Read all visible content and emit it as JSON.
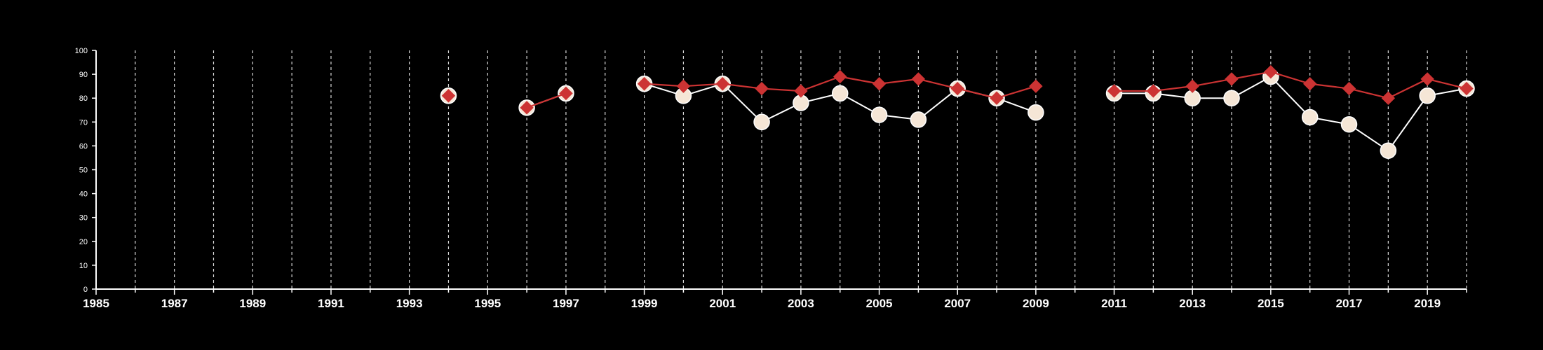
{
  "colors": {
    "background": "#000000",
    "axis": "#ffffff",
    "grid": "#d9d9d9",
    "series_a_marker": "#f5e6d6",
    "series_a_line": "#ffffff",
    "series_b": "#cc3333"
  },
  "chart_data": {
    "type": "line",
    "title": "",
    "xlabel": "",
    "ylabel": "",
    "xlim": [
      1985,
      2020
    ],
    "ylim": [
      0,
      100
    ],
    "x_ticks": [
      1985,
      1987,
      1989,
      1991,
      1993,
      1995,
      1997,
      1999,
      2001,
      2003,
      2005,
      2007,
      2009,
      2011,
      2013,
      2015,
      2017,
      2019
    ],
    "x_minor_ticks_every": 1,
    "y_ticks": [
      0,
      10,
      20,
      30,
      40,
      50,
      60,
      70,
      80,
      90,
      100
    ],
    "grid": "vertical dashed at every year",
    "legend": "none",
    "x": [
      1985,
      1986,
      1987,
      1988,
      1989,
      1990,
      1991,
      1992,
      1993,
      1994,
      1995,
      1996,
      1997,
      1998,
      1999,
      2000,
      2001,
      2002,
      2003,
      2004,
      2005,
      2006,
      2007,
      2008,
      2009,
      2010,
      2011,
      2012,
      2013,
      2014,
      2015,
      2016,
      2017,
      2018,
      2019,
      2020
    ],
    "series": [
      {
        "marker": "circle",
        "values": [
          null,
          null,
          null,
          null,
          null,
          null,
          null,
          null,
          null,
          81,
          null,
          76,
          82,
          null,
          86,
          81,
          86,
          70,
          78,
          82,
          73,
          71,
          84,
          80,
          74,
          null,
          82,
          82,
          80,
          80,
          89,
          72,
          69,
          58,
          81,
          84
        ]
      },
      {
        "marker": "diamond",
        "values": [
          null,
          null,
          null,
          null,
          null,
          null,
          null,
          null,
          null,
          81,
          null,
          76,
          82,
          null,
          86,
          85,
          86,
          84,
          83,
          89,
          86,
          88,
          84,
          80,
          85,
          null,
          83,
          83,
          85,
          88,
          91,
          86,
          84,
          80,
          88,
          84
        ]
      }
    ]
  }
}
